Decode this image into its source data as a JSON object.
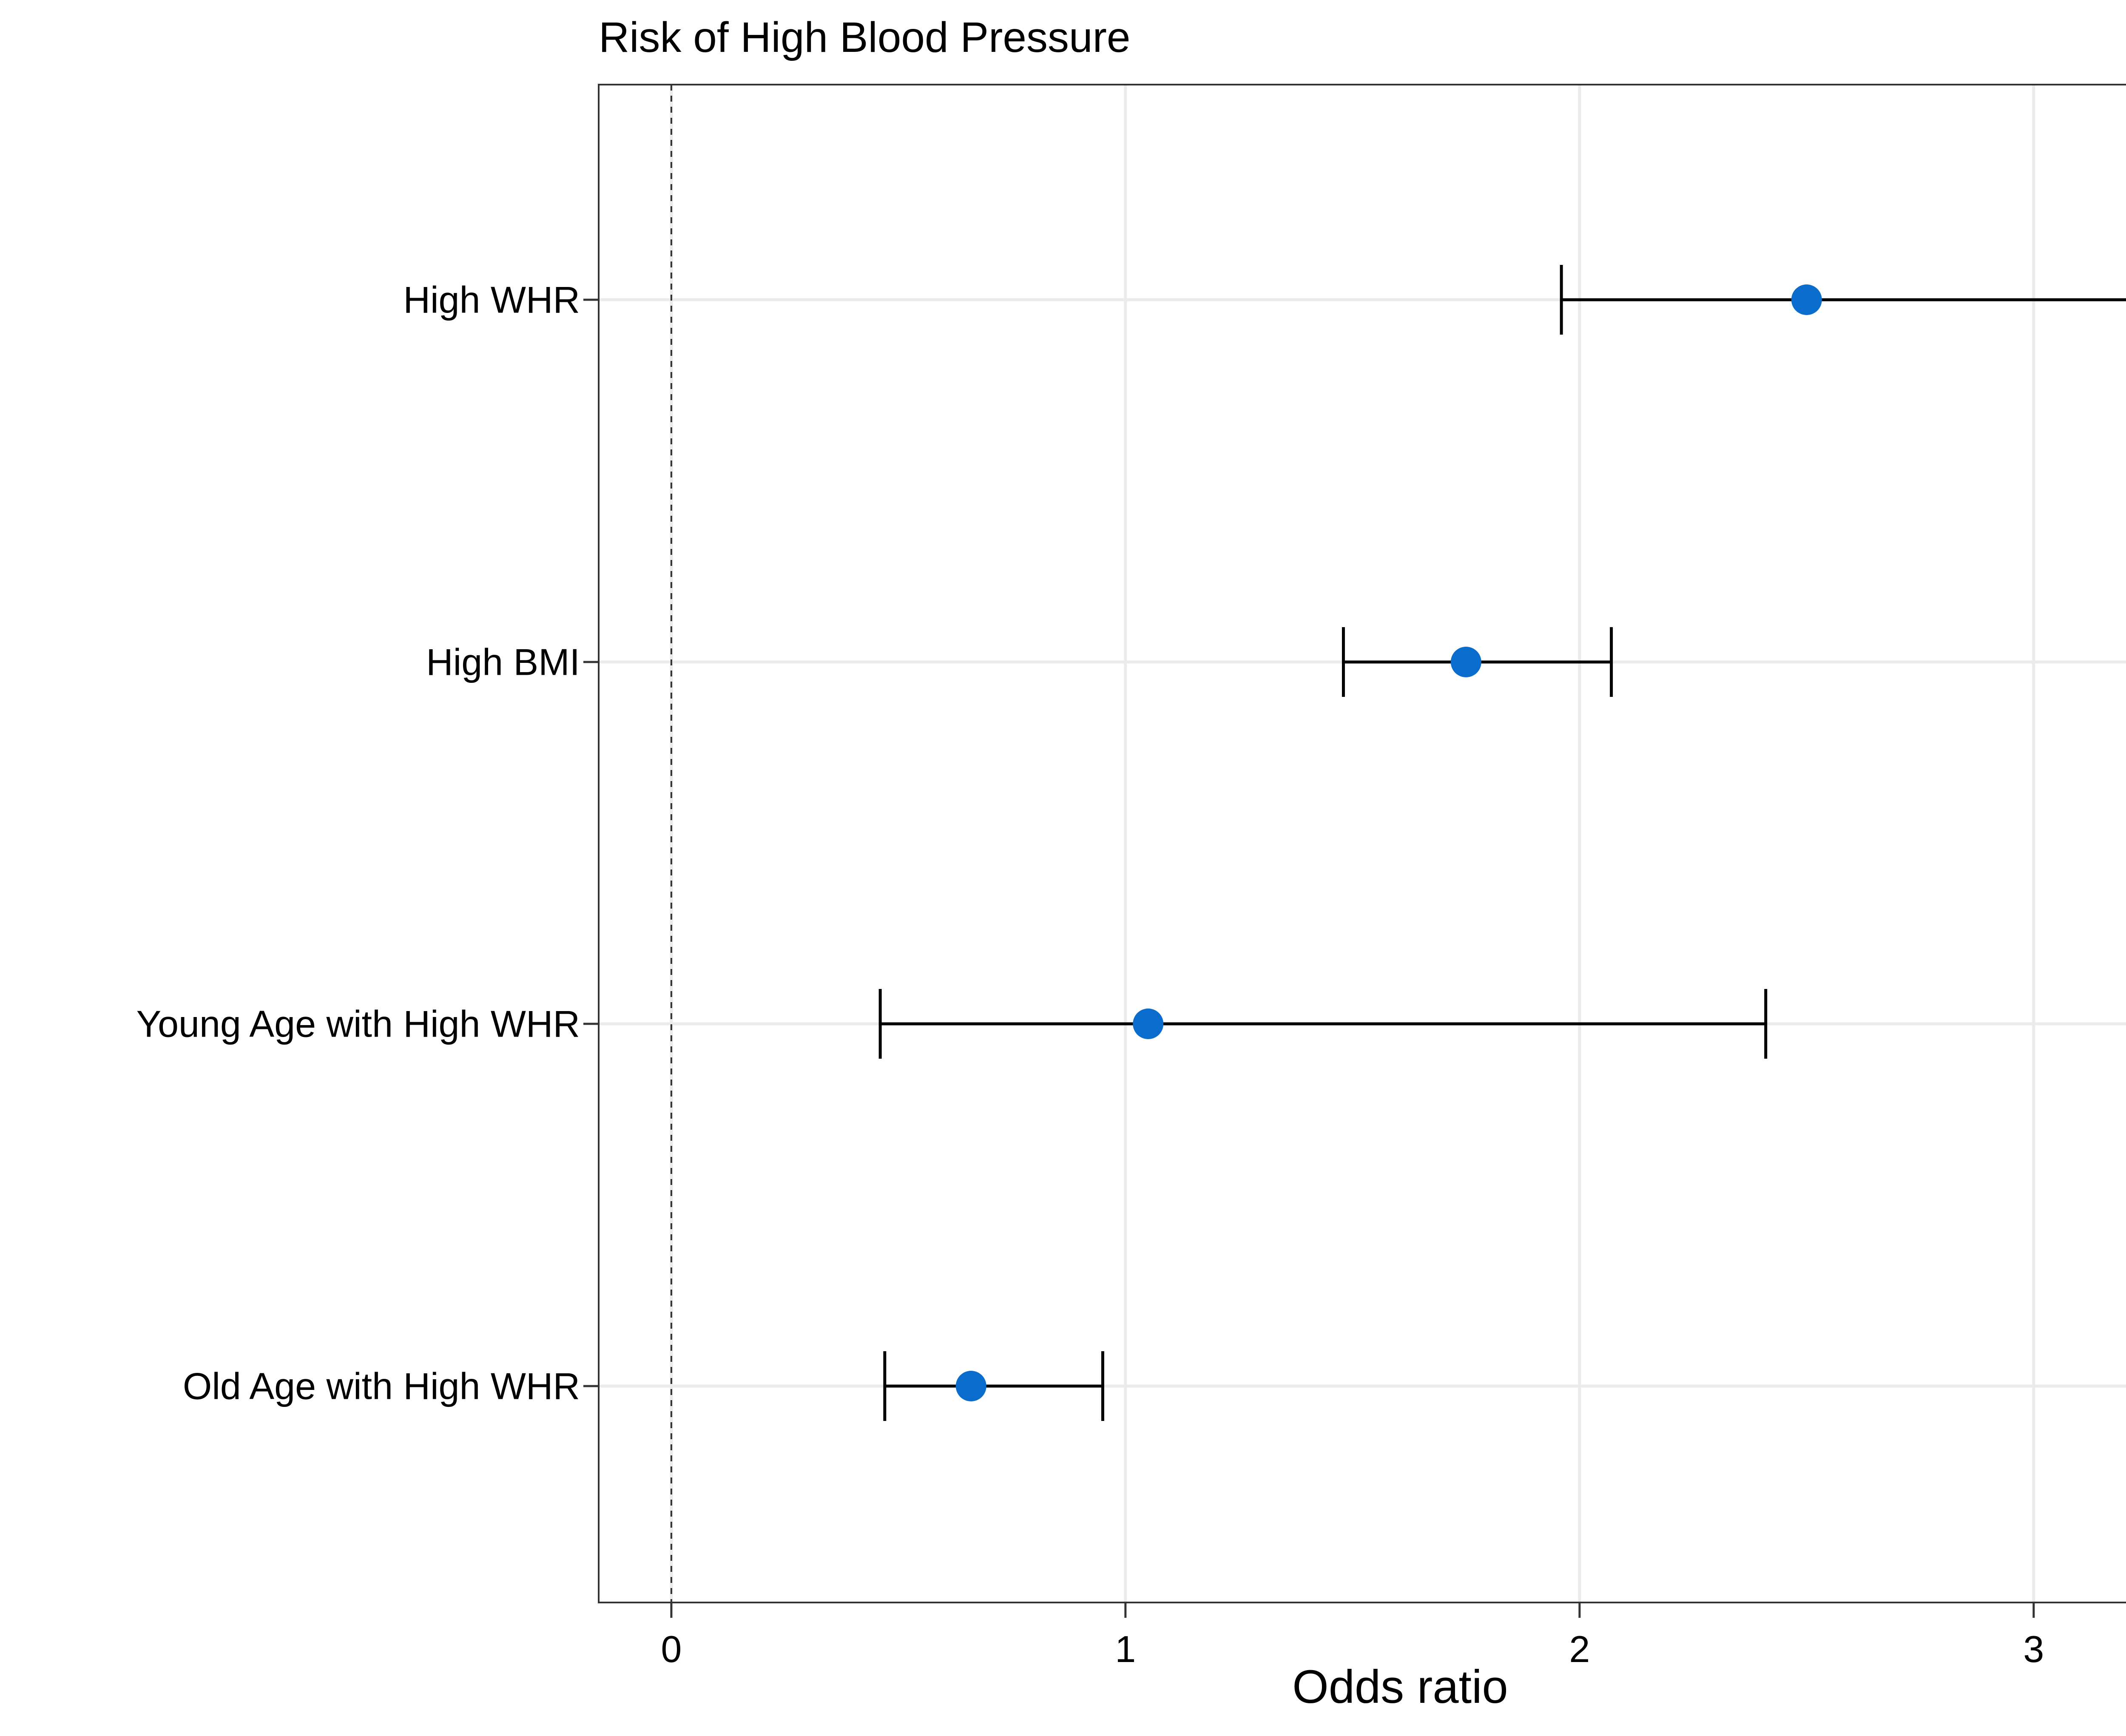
{
  "chart_data": {
    "type": "forest",
    "title": "Risk of High Blood Pressure",
    "xlabel": "Odds ratio",
    "ylabel": "",
    "xlim": [
      -0.16,
      3.37
    ],
    "xticks": [
      0,
      1,
      2,
      3
    ],
    "reference_line": 0,
    "categories": [
      "High WHR",
      "High BMI",
      "Young Age with High WHR",
      "Old Age with High WHR"
    ],
    "estimates": [
      2.5,
      1.75,
      1.05,
      0.66
    ],
    "ci_lower": [
      1.96,
      1.48,
      0.46,
      0.47
    ],
    "ci_upper": [
      3.21,
      2.07,
      2.41,
      0.95
    ],
    "grid": true,
    "colors": {
      "point": "#0a6ccc",
      "errorbar": "#000000",
      "gridline": "#ebebeb",
      "panel_border": "#333333",
      "reference_line": "#333333"
    }
  }
}
